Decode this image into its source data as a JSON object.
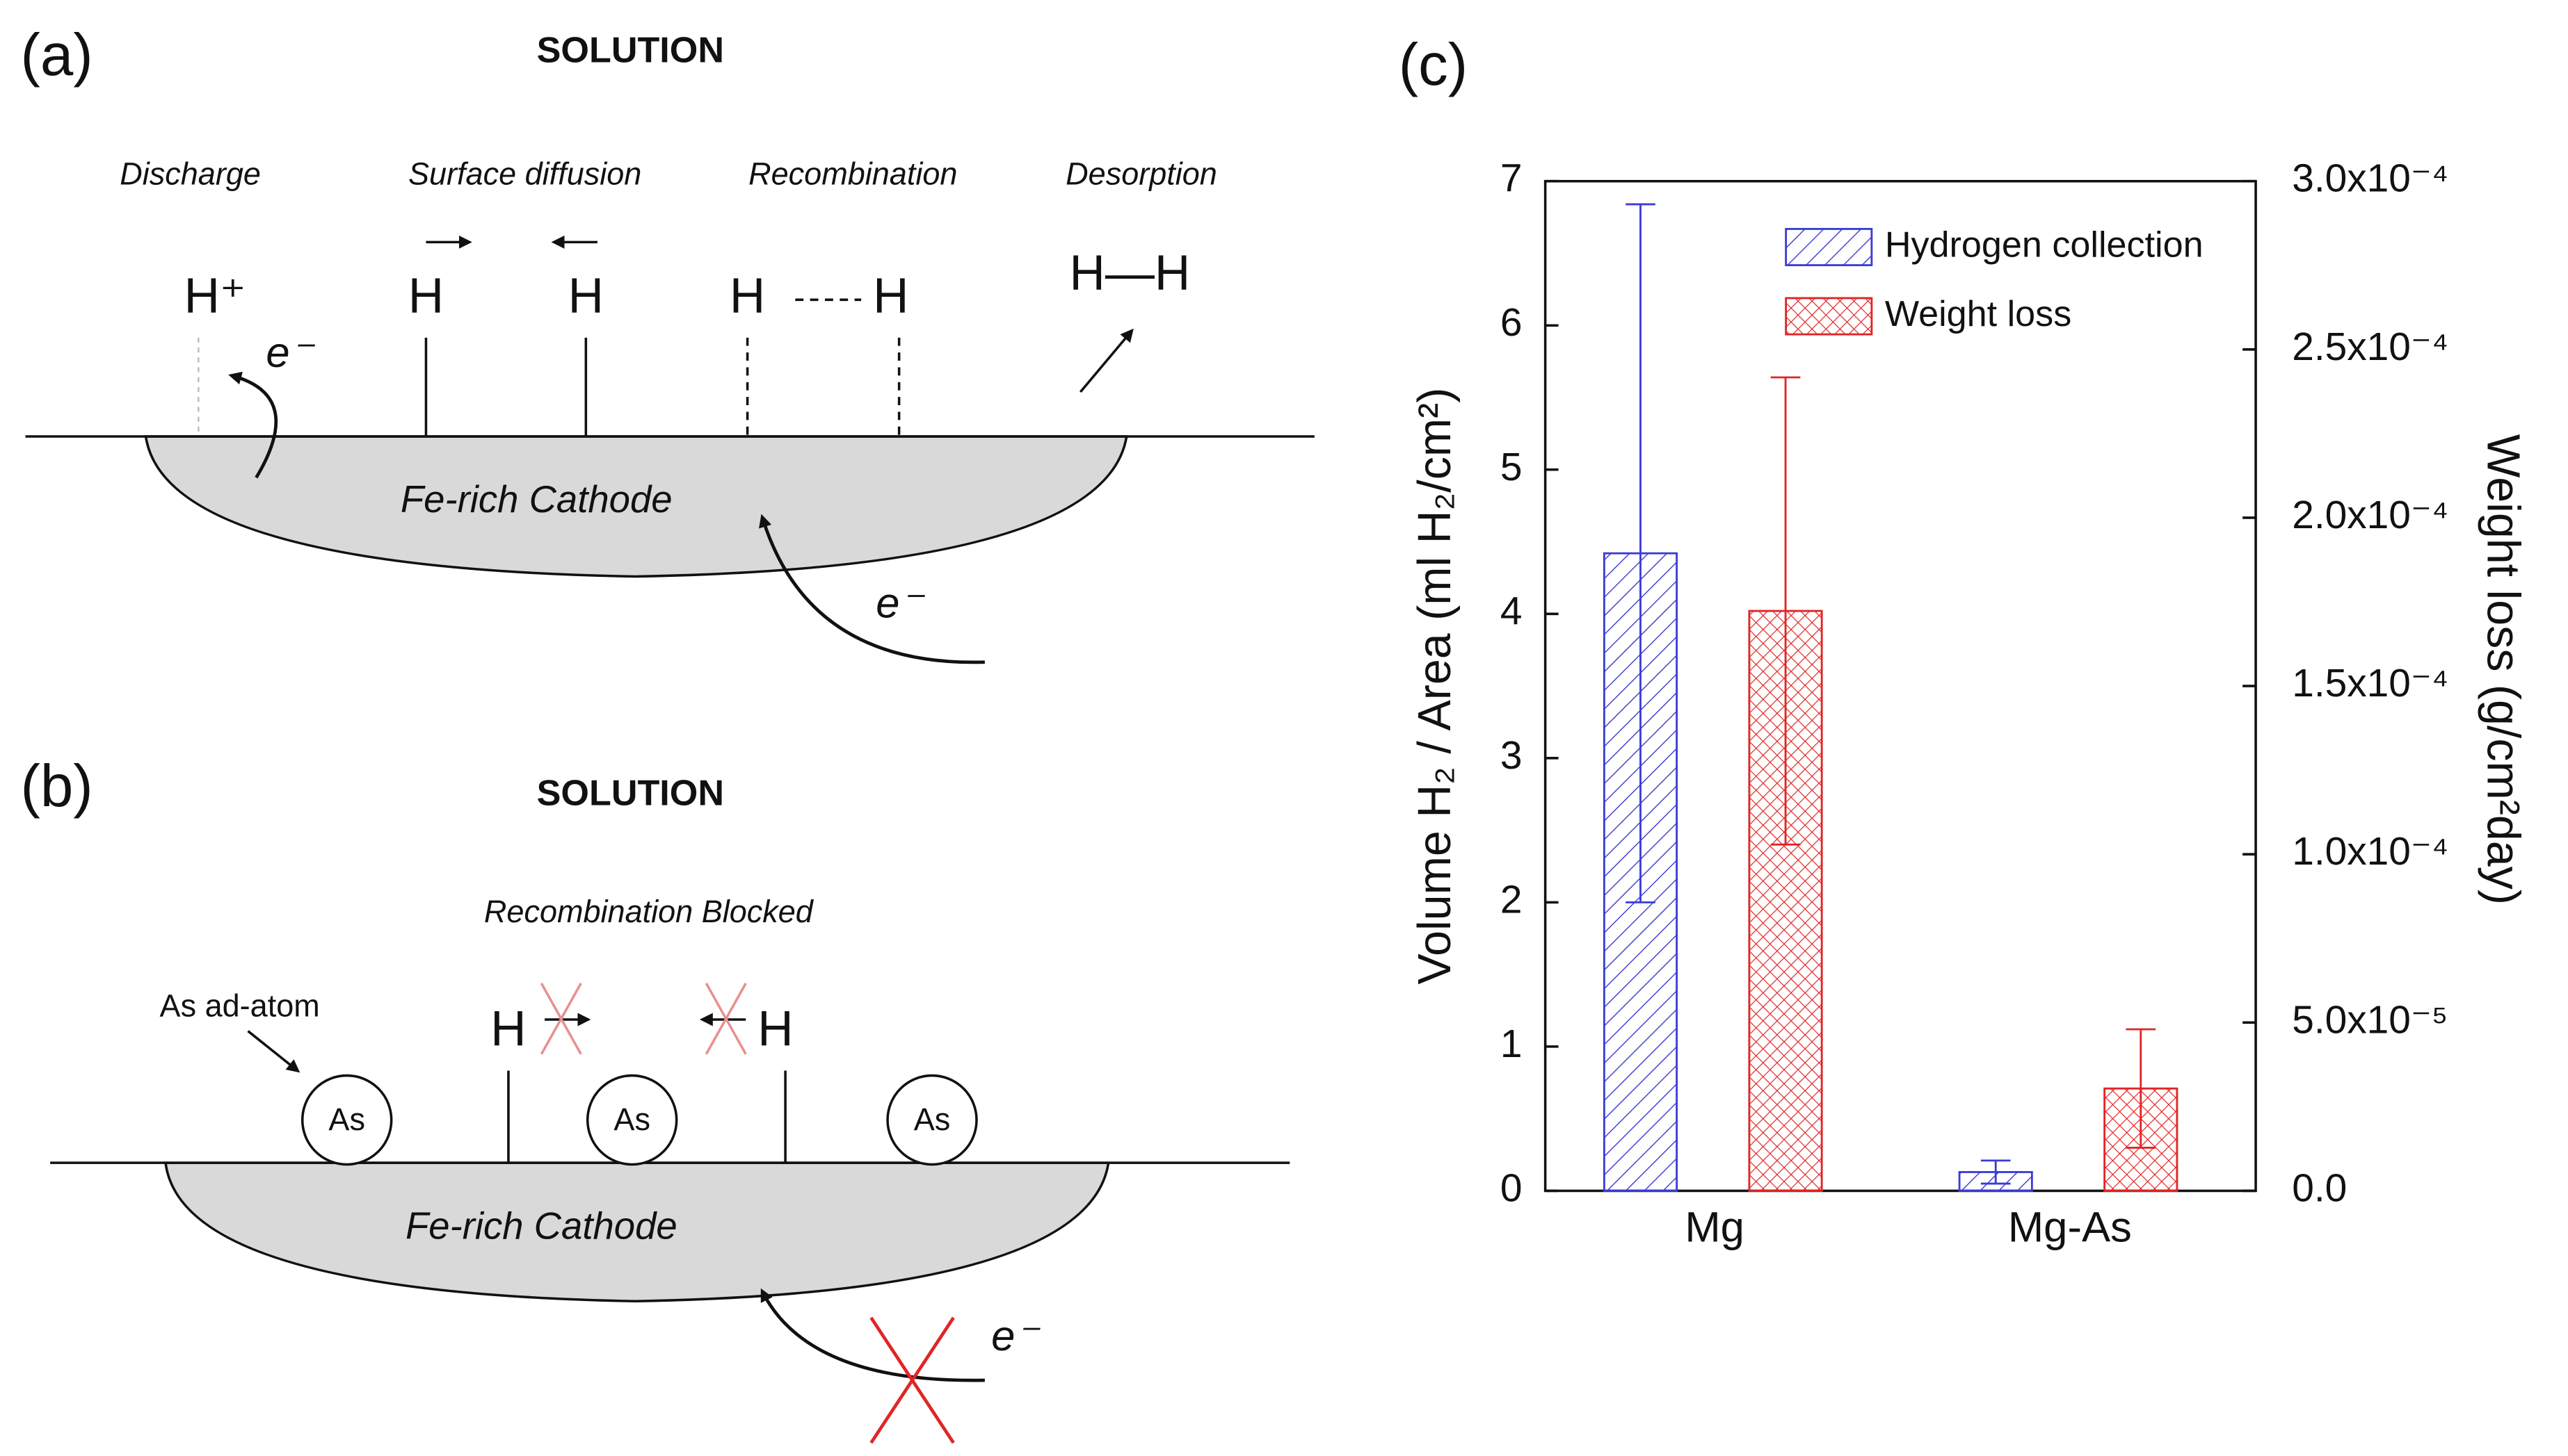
{
  "panel_a": {
    "label": "(a)",
    "title": "SOLUTION",
    "steps": [
      "Discharge",
      "Surface diffusion",
      "Recombination",
      "Desorption"
    ],
    "species": [
      "H⁺",
      "H",
      "H",
      "H",
      "H",
      "H—H"
    ],
    "electrons": [
      "e⁻",
      "e⁻"
    ],
    "cathode": "Fe-rich Cathode"
  },
  "panel_b": {
    "label": "(b)",
    "title": "SOLUTION",
    "caption": "Recombination  Blocked",
    "adatom_label": "As ad-atom",
    "adatoms": [
      "As",
      "As",
      "As"
    ],
    "species": [
      "H",
      "H"
    ],
    "electron": "e⁻",
    "cathode": "Fe-rich Cathode"
  },
  "chart_data": {
    "type": "bar",
    "panel_label": "(c)",
    "categories": [
      "Mg",
      "Mg-As"
    ],
    "series": [
      {
        "name": "Hydrogen collection",
        "color": "#3b3bd6",
        "hatch": "diagonal",
        "values": [
          4.42,
          0.13
        ],
        "errors": [
          2.42,
          0.08
        ]
      },
      {
        "name": "Weight loss",
        "color": "#e02525",
        "hatch": "cross",
        "axis": "y2",
        "values": [
          0.0001723,
          3.04e-05
        ],
        "errors": [
          6.94e-05,
          1.76e-05
        ]
      }
    ],
    "ylabel": "Volume H₂ / Area (ml H₂/cm²)",
    "y2label": "Weight loss (g/cm²day)",
    "ylim": [
      0,
      7
    ],
    "yticks": [
      0,
      1,
      2,
      3,
      4,
      5,
      6,
      7
    ],
    "y2lim": [
      0,
      0.0003
    ],
    "y2ticks": [
      {
        "value": 0,
        "label": "0.0"
      },
      {
        "value": 5e-05,
        "label": "5.0x10⁻⁵"
      },
      {
        "value": 0.0001,
        "label": "1.0x10⁻⁴"
      },
      {
        "value": 0.00015,
        "label": "1.5x10⁻⁴"
      },
      {
        "value": 0.0002,
        "label": "2.0x10⁻⁴"
      },
      {
        "value": 0.00025,
        "label": "2.5x10⁻⁴"
      },
      {
        "value": 0.0003,
        "label": "3.0x10⁻⁴"
      }
    ],
    "legend": "upper right"
  }
}
